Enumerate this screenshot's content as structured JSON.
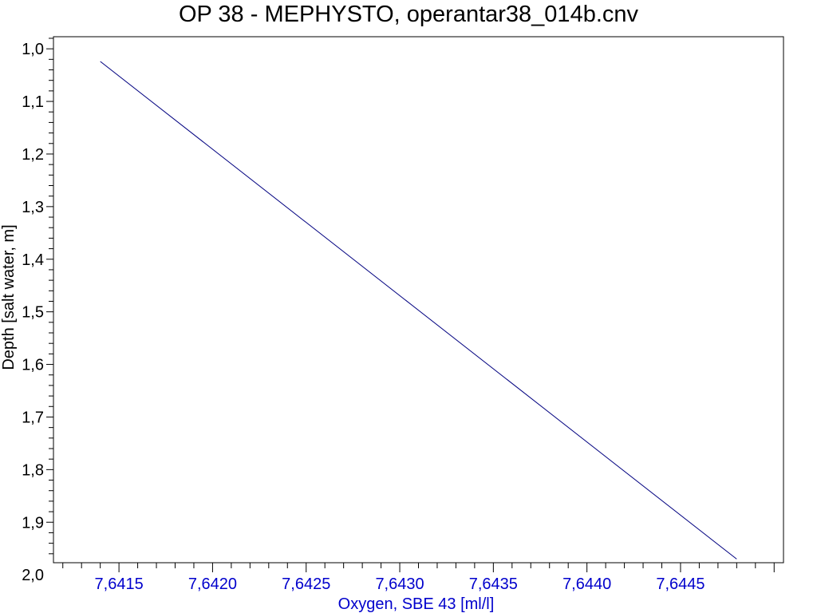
{
  "colors": {
    "line": "#000080",
    "x_axis_text": "#0000cc",
    "y_axis_text": "#000000",
    "frame": "#000000",
    "background": "#ffffff"
  },
  "chart_data": {
    "type": "line",
    "title": "OP 38 - MEPHYSTO, operantar38_014b.cnv",
    "xlabel": "Oxygen, SBE 43 [ml/l]",
    "ylabel": "Depth [salt water, m]",
    "xlim": [
      7.64115,
      7.64505
    ],
    "ylim": [
      1.977,
      0.977
    ],
    "y_inverted": true,
    "grid": false,
    "x_ticks": [
      7.6415,
      7.642,
      7.6425,
      7.643,
      7.6435,
      7.644,
      7.6445
    ],
    "x_tick_labels": [
      "7,6415",
      "7,6420",
      "7,6425",
      "7,6430",
      "7,6435",
      "7,6440",
      "7,6445"
    ],
    "y_ticks": [
      1.0,
      1.1,
      1.2,
      1.3,
      1.4,
      1.5,
      1.6,
      1.7,
      1.8,
      1.9,
      2.0
    ],
    "y_tick_labels": [
      "1,0",
      "1,1",
      "1,2",
      "1,3",
      "1,4",
      "1,5",
      "1,6",
      "1,7",
      "1,8",
      "1,9",
      "2,0"
    ],
    "series": [
      {
        "x": [
          7.6414,
          7.6448
        ],
        "y": [
          1.024,
          1.97
        ]
      }
    ]
  }
}
